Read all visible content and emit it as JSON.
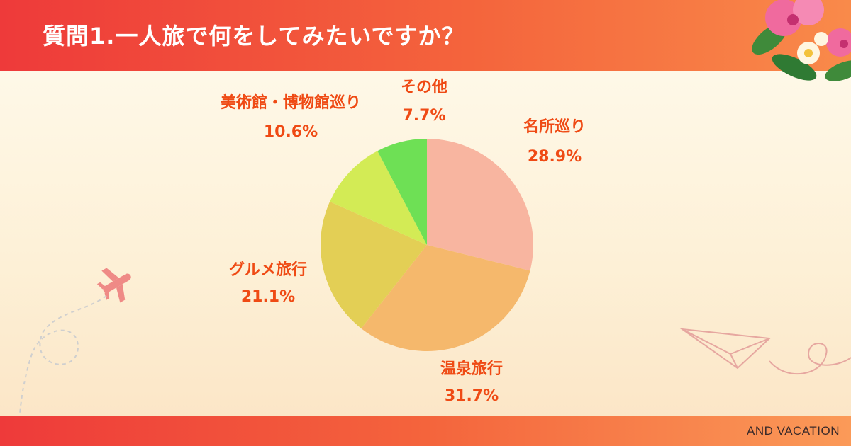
{
  "header": {
    "title": "質問1.一人旅で何をしてみたいですか？"
  },
  "footer": {
    "brand": "AND VACATION"
  },
  "colors": {
    "header_start": "#ee3a3a",
    "header_end": "#f98a4a",
    "label": "#ef4a14",
    "slices": [
      "#f8b5a0",
      "#f5b86c",
      "#e3cf55",
      "#d3eb55",
      "#6ee055"
    ]
  },
  "chart_data": {
    "type": "pie",
    "title": "",
    "categories": [
      "名所巡り",
      "温泉旅行",
      "グルメ旅行",
      "美術館・博物館巡り",
      "その他"
    ],
    "values": [
      28.9,
      31.7,
      21.1,
      10.6,
      7.7
    ],
    "value_labels": [
      "28.9%",
      "31.7%",
      "21.1%",
      "10.6%",
      "7.7%"
    ],
    "start": "top",
    "direction": "clockwise"
  }
}
